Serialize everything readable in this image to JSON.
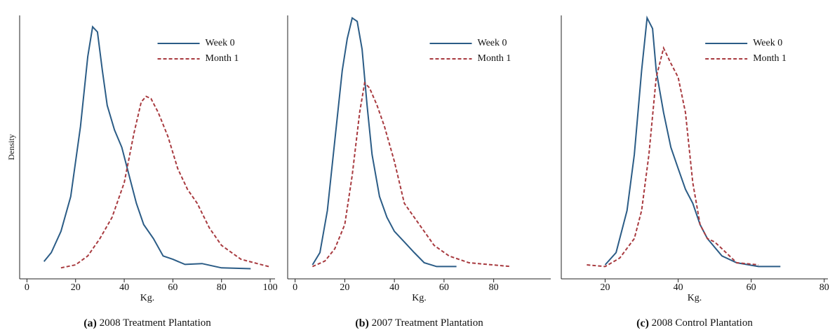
{
  "chart_data": [
    {
      "type": "line",
      "x_label": "Kg.",
      "y_label": "Density",
      "caption_label": "(a)",
      "caption": "2008 Treatment Plantation",
      "xlim": [
        -3,
        102
      ],
      "xticks": [
        0,
        20,
        40,
        60,
        80,
        100
      ],
      "ylim": [
        -0.0021,
        0.06
      ],
      "legend": "upper right",
      "series": [
        {
          "name": "Week 0",
          "color": "#2b5c86",
          "linestyle": "solid",
          "x": [
            7,
            10,
            14,
            18,
            22,
            25,
            27,
            29,
            31,
            33,
            36,
            39,
            42,
            45,
            48,
            52,
            56,
            60,
            65,
            72,
            80,
            92
          ],
          "values": [
            0.002,
            0.0041,
            0.0091,
            0.0173,
            0.0338,
            0.0503,
            0.0573,
            0.0561,
            0.047,
            0.0388,
            0.033,
            0.0289,
            0.0223,
            0.0157,
            0.0107,
            0.0074,
            0.0033,
            0.0025,
            0.0013,
            0.0015,
            0.0005,
            0.0003
          ]
        },
        {
          "name": "Month 1",
          "color": "#a83a3f",
          "linestyle": "dashed",
          "x": [
            14,
            20,
            25,
            30,
            35,
            40,
            44,
            47,
            49,
            51,
            54,
            58,
            62,
            66,
            70,
            75,
            80,
            88,
            100
          ],
          "values": [
            0.0005,
            0.0012,
            0.0033,
            0.0074,
            0.0124,
            0.0206,
            0.0322,
            0.0396,
            0.0409,
            0.0404,
            0.0371,
            0.0314,
            0.0239,
            0.019,
            0.0157,
            0.0099,
            0.0058,
            0.0025,
            0.0007
          ]
        }
      ]
    },
    {
      "type": "line",
      "x_label": "Kg.",
      "caption_label": "(b)",
      "caption": "2007 Treatment Plantation",
      "xlim": [
        -3,
        103
      ],
      "xticks": [
        0,
        20,
        40,
        60,
        80
      ],
      "ylim": [
        -0.0021,
        0.06
      ],
      "legend": "upper right",
      "series": [
        {
          "name": "Week 0",
          "color": "#2b5c86",
          "linestyle": "solid",
          "x": [
            7,
            10,
            13,
            16,
            19,
            21,
            23,
            25,
            27,
            29,
            31,
            34,
            37,
            40,
            44,
            48,
            52,
            57,
            65
          ],
          "values": [
            0.0012,
            0.0041,
            0.014,
            0.0305,
            0.047,
            0.0545,
            0.0594,
            0.0586,
            0.052,
            0.0388,
            0.0272,
            0.0173,
            0.0124,
            0.0091,
            0.0066,
            0.0041,
            0.0017,
            0.0008,
            0.0008
          ]
        },
        {
          "name": "Month 1",
          "color": "#a83a3f",
          "linestyle": "dashed",
          "x": [
            7,
            12,
            16,
            20,
            23,
            26,
            28,
            30,
            33,
            36,
            40,
            44,
            48,
            52,
            56,
            62,
            70,
            87
          ],
          "values": [
            0.0008,
            0.0021,
            0.005,
            0.0107,
            0.0223,
            0.0371,
            0.0441,
            0.0429,
            0.0388,
            0.0338,
            0.0256,
            0.0157,
            0.0124,
            0.0091,
            0.0058,
            0.0033,
            0.0017,
            0.0008
          ]
        }
      ]
    },
    {
      "type": "line",
      "x_label": "Kg.",
      "caption_label": "(c)",
      "caption": "2008 Control Plantation",
      "xlim": [
        8,
        81
      ],
      "xticks": [
        20,
        40,
        60,
        80
      ],
      "ylim": [
        -0.0021,
        0.06
      ],
      "legend": "upper right",
      "series": [
        {
          "name": "Week 0",
          "color": "#2b5c86",
          "linestyle": "solid",
          "x": [
            20,
            23,
            26,
            28,
            30,
            31.5,
            33,
            34,
            36,
            38,
            40,
            42,
            44,
            46,
            48,
            52,
            56,
            62,
            68
          ],
          "values": [
            0.0012,
            0.0041,
            0.014,
            0.0272,
            0.047,
            0.0594,
            0.0569,
            0.047,
            0.0371,
            0.0289,
            0.0239,
            0.019,
            0.0157,
            0.0107,
            0.0074,
            0.0033,
            0.0017,
            0.0008,
            0.0008
          ]
        },
        {
          "name": "Month 1",
          "color": "#a83a3f",
          "linestyle": "dashed",
          "x": [
            15,
            20,
            24,
            28,
            30,
            32,
            34,
            36,
            38,
            40,
            42,
            44,
            46,
            48,
            50,
            52,
            56,
            62
          ],
          "values": [
            0.0012,
            0.0008,
            0.0028,
            0.0074,
            0.014,
            0.0272,
            0.0454,
            0.0523,
            0.0487,
            0.0454,
            0.0371,
            0.0206,
            0.0107,
            0.0074,
            0.0066,
            0.005,
            0.0017,
            0.0012
          ]
        }
      ]
    }
  ]
}
